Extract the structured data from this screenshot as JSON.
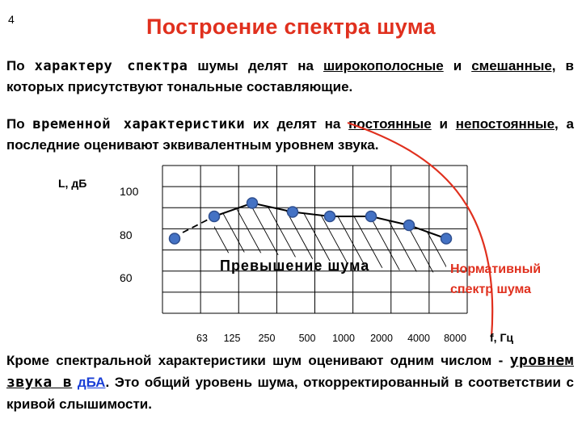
{
  "slide_number": "4",
  "title": "Построение спектра шума",
  "para1": {
    "t1": " По ",
    "t2": "характеру спектра",
    "t3": " шумы делят на ",
    "t4": "широкополосные",
    "t5": " и ",
    "t6": "смешанные,",
    "t7": " в которых присутствуют тональные составляющие."
  },
  "para2": {
    "t1": " По ",
    "t2": "временной характеристики",
    "t3": " их делят на ",
    "t4": "постоянные",
    "t5": " и ",
    "t6": "непостоянные",
    "t7": ", а последние оценивают эквивалентным уровнем звука."
  },
  "para3": {
    "t1": " Кроме спектральной характеристики шум оценивают одним числом - ",
    "t2": "уровнем звука в",
    "t3": " ",
    "t4": "дБА",
    "t5": ". Это общий уровень шума, откорректированный в соответствии с кривой слышимости."
  },
  "chart_data": {
    "type": "line",
    "ylabel": "L, дБ",
    "xlabel": "f, Гц",
    "y_ticks": [
      "100",
      "80",
      "60"
    ],
    "x_ticks": [
      "63",
      "125",
      "250",
      "500",
      "1000",
      "2000",
      "4000",
      "8000"
    ],
    "series": [
      {
        "x": [
          "63",
          "125",
          "250",
          "500",
          "1000",
          "2000",
          "4000",
          "8000"
        ],
        "values": [
          78,
          88,
          94,
          90,
          88,
          88,
          84,
          78
        ]
      }
    ],
    "annotations": {
      "exceedance": "Превышение шума",
      "norm_curve_label": "Нормативный спектр шума"
    },
    "colors": {
      "points": "#4472c4",
      "norm_curve": "#e0301e",
      "dashed_curve": "#000000"
    },
    "grid": true
  }
}
